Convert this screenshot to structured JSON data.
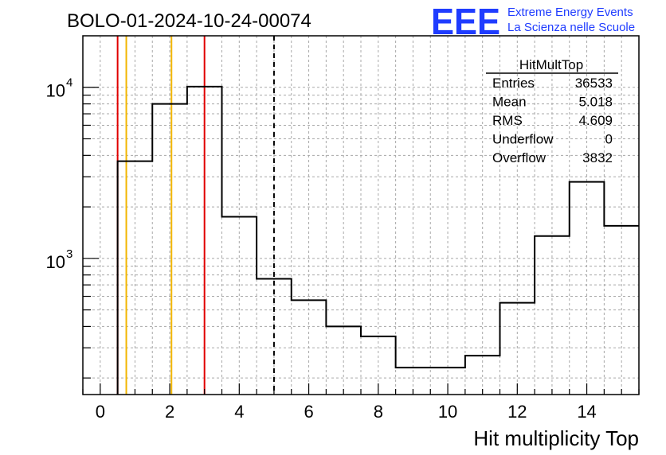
{
  "run_title": "BOLO-01-2024-10-24-00074",
  "logo": {
    "text": "EEE",
    "line1": "Extreme Energy Events",
    "line2": "La Scienza nelle Scuole",
    "color": "#1f3cff"
  },
  "stats": {
    "title": "HitMultTop",
    "rows": [
      {
        "label": "Entries",
        "value": "36533"
      },
      {
        "label": "Mean",
        "value": "5.018"
      },
      {
        "label": "RMS",
        "value": "4.609"
      },
      {
        "label": "Underflow",
        "value": "0"
      },
      {
        "label": "Overflow",
        "value": "3832"
      }
    ]
  },
  "chart_data": {
    "type": "histogram",
    "xlabel": "Hit multiplicity Top",
    "ylabel": "",
    "xlim": [
      -0.5,
      15.5
    ],
    "ylim": [
      160,
      20000
    ],
    "y_scale": "log",
    "grid": true,
    "x_ticks": [
      0,
      2,
      4,
      6,
      8,
      10,
      12,
      14
    ],
    "y_tick_labels": [
      {
        "value": 1000,
        "base": "10",
        "exp": "3"
      },
      {
        "value": 10000,
        "base": "10",
        "exp": "4"
      }
    ],
    "bin_edges": [
      0.5,
      1.5,
      2.5,
      3.5,
      4.5,
      5.5,
      6.5,
      7.5,
      8.5,
      9.5,
      10.5,
      11.5,
      12.5,
      13.5,
      14.5,
      15.5
    ],
    "counts": [
      3700,
      8000,
      10100,
      1750,
      760,
      570,
      400,
      350,
      230,
      230,
      270,
      550,
      1350,
      2800,
      1550
    ],
    "vertical_lines": [
      {
        "x": 0.5,
        "color": "#e00000",
        "style": "solid"
      },
      {
        "x": 0.75,
        "color": "#f2b600",
        "style": "solid"
      },
      {
        "x": 2.05,
        "color": "#f2b600",
        "style": "solid"
      },
      {
        "x": 3.0,
        "color": "#e00000",
        "style": "solid"
      },
      {
        "x": 5.0,
        "color": "#000000",
        "style": "dashed"
      }
    ]
  }
}
